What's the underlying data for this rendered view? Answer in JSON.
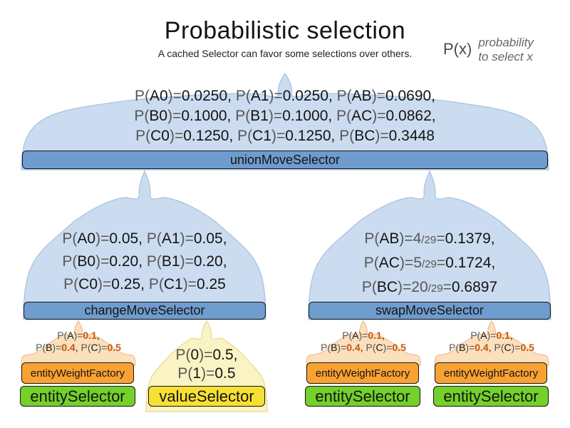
{
  "title": "Probabilistic selection",
  "subtitle": "A cached Selector can favor some selections over others.",
  "legend": {
    "symbol": "P(x)",
    "desc_line1": "probability",
    "desc_line2": "to select x"
  },
  "colors": {
    "dome_blue": "#cbdcf0",
    "dome_blue_stroke": "#a7c1de",
    "bar_blue": "#6f9cce",
    "dome_orange": "#fcdfbd",
    "dome_orange_stroke": "#f2bd8d",
    "dome_yellow": "#faf3c3",
    "dome_yellow_stroke": "#e8d98b",
    "box_orange": "#f9a233",
    "box_green": "#74d02a",
    "box_yellow": "#f7e035",
    "value_orange": "#c4570e"
  },
  "nodes": {
    "union": "unionMoveSelector",
    "change": "changeMoveSelector",
    "swap": "swapMoveSelector",
    "entity_weight_factory": "entityWeightFactory",
    "entity_selector": "entitySelector",
    "value_selector": "valueSelector"
  },
  "probabilities": {
    "union": [
      [
        [
          "g",
          "P("
        ],
        [
          "b",
          "A0"
        ],
        [
          "g",
          ")="
        ],
        [
          "b",
          "0.0250, "
        ],
        [
          "g",
          "P("
        ],
        [
          "b",
          "A1"
        ],
        [
          "g",
          ")="
        ],
        [
          "b",
          "0.0250, "
        ],
        [
          "g",
          "P("
        ],
        [
          "b",
          "AB"
        ],
        [
          "g",
          ")="
        ],
        [
          "b",
          "0.0690,"
        ]
      ],
      [
        [
          "g",
          "P("
        ],
        [
          "b",
          "B0"
        ],
        [
          "g",
          ")="
        ],
        [
          "b",
          "0.1000, "
        ],
        [
          "g",
          "P("
        ],
        [
          "b",
          "B1"
        ],
        [
          "g",
          ")="
        ],
        [
          "b",
          "0.1000, "
        ],
        [
          "g",
          "P("
        ],
        [
          "b",
          "AC"
        ],
        [
          "g",
          ")="
        ],
        [
          "b",
          "0.0862,"
        ]
      ],
      [
        [
          "g",
          "P("
        ],
        [
          "b",
          "C0"
        ],
        [
          "g",
          ")="
        ],
        [
          "b",
          "0.1250, "
        ],
        [
          "g",
          "P("
        ],
        [
          "b",
          "C1"
        ],
        [
          "g",
          ")="
        ],
        [
          "b",
          "0.1250, "
        ],
        [
          "g",
          "P("
        ],
        [
          "b",
          "BC"
        ],
        [
          "g",
          ")="
        ],
        [
          "b",
          "0.3448"
        ]
      ]
    ],
    "change": [
      [
        [
          "g",
          "P("
        ],
        [
          "b",
          "A0"
        ],
        [
          "g",
          ")="
        ],
        [
          "b",
          "0.05, "
        ],
        [
          "g",
          "P("
        ],
        [
          "b",
          "A1"
        ],
        [
          "g",
          ")="
        ],
        [
          "b",
          "0.05,"
        ]
      ],
      [
        [
          "g",
          "P("
        ],
        [
          "b",
          "B0"
        ],
        [
          "g",
          ")="
        ],
        [
          "b",
          "0.20, "
        ],
        [
          "g",
          "P("
        ],
        [
          "b",
          "B1"
        ],
        [
          "g",
          ")="
        ],
        [
          "b",
          "0.20,"
        ]
      ],
      [
        [
          "g",
          "P("
        ],
        [
          "b",
          "C0"
        ],
        [
          "g",
          ")="
        ],
        [
          "b",
          "0.25, "
        ],
        [
          "g",
          "P("
        ],
        [
          "b",
          "C1"
        ],
        [
          "g",
          ")="
        ],
        [
          "b",
          "0.25"
        ]
      ]
    ],
    "swap": [
      [
        [
          "g",
          "P("
        ],
        [
          "b",
          "AB"
        ],
        [
          "g",
          ")="
        ],
        [
          "g",
          "4"
        ],
        [
          "f",
          "/29"
        ],
        [
          "g",
          "="
        ],
        [
          "b",
          "0.1379,"
        ]
      ],
      [
        [
          "g",
          "P("
        ],
        [
          "b",
          "AC"
        ],
        [
          "g",
          ")="
        ],
        [
          "g",
          "5"
        ],
        [
          "f",
          "/29"
        ],
        [
          "g",
          "="
        ],
        [
          "b",
          "0.1724,"
        ]
      ],
      [
        [
          "g",
          "P("
        ],
        [
          "b",
          "BC"
        ],
        [
          "g",
          ")="
        ],
        [
          "g",
          "20"
        ],
        [
          "f",
          "/29"
        ],
        [
          "g",
          "="
        ],
        [
          "b",
          "0.6897"
        ]
      ]
    ],
    "entity_weight": [
      [
        [
          "g",
          "P("
        ],
        [
          "b",
          "A"
        ],
        [
          "g",
          ")="
        ],
        [
          "o",
          "0.1"
        ],
        [
          "b",
          ","
        ]
      ],
      [
        [
          "g",
          "P("
        ],
        [
          "b",
          "B"
        ],
        [
          "g",
          ")="
        ],
        [
          "o",
          "0.4"
        ],
        [
          "b",
          ", "
        ],
        [
          "g",
          "P("
        ],
        [
          "b",
          "C"
        ],
        [
          "g",
          ")="
        ],
        [
          "o",
          "0.5"
        ]
      ]
    ],
    "value": [
      [
        [
          "g",
          "P("
        ],
        [
          "b",
          "0"
        ],
        [
          "g",
          ")="
        ],
        [
          "b",
          "0.5,"
        ]
      ],
      [
        [
          "g",
          "P("
        ],
        [
          "b",
          "1"
        ],
        [
          "g",
          ")="
        ],
        [
          "b",
          "0.5"
        ]
      ]
    ]
  }
}
